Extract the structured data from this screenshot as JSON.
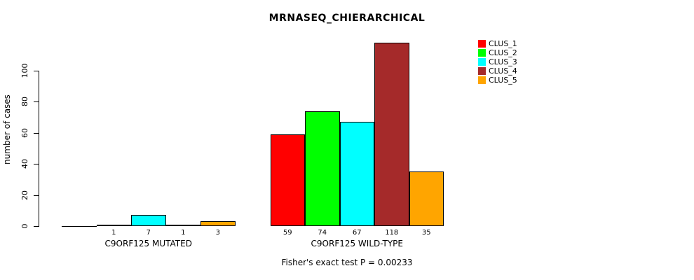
{
  "chart_data": {
    "type": "bar",
    "title": "MRNASEQ_CHIERARCHICAL",
    "ylabel": "number of cases",
    "xlabel": "",
    "groups": [
      "C9ORF125 MUTATED",
      "C9ORF125 WILD-TYPE"
    ],
    "series": [
      {
        "name": "CLUS_1",
        "color": "#ff0000",
        "values": [
          0,
          59
        ]
      },
      {
        "name": "CLUS_2",
        "color": "#00ff00",
        "values": [
          1,
          74
        ]
      },
      {
        "name": "CLUS_3",
        "color": "#00ffff",
        "values": [
          7,
          67
        ]
      },
      {
        "name": "CLUS_4",
        "color": "#a52a2a",
        "values": [
          1,
          118
        ]
      },
      {
        "name": "CLUS_5",
        "color": "#ffa500",
        "values": [
          3,
          35
        ]
      }
    ],
    "yticks": [
      0,
      20,
      40,
      60,
      80,
      100
    ],
    "ylim": [
      0,
      120
    ],
    "grid": false,
    "legend_position": "top-right",
    "bar_value_labels_shown_for_nonzero_only": true,
    "annotation": "Fisher's exact test P = 0.00233"
  }
}
